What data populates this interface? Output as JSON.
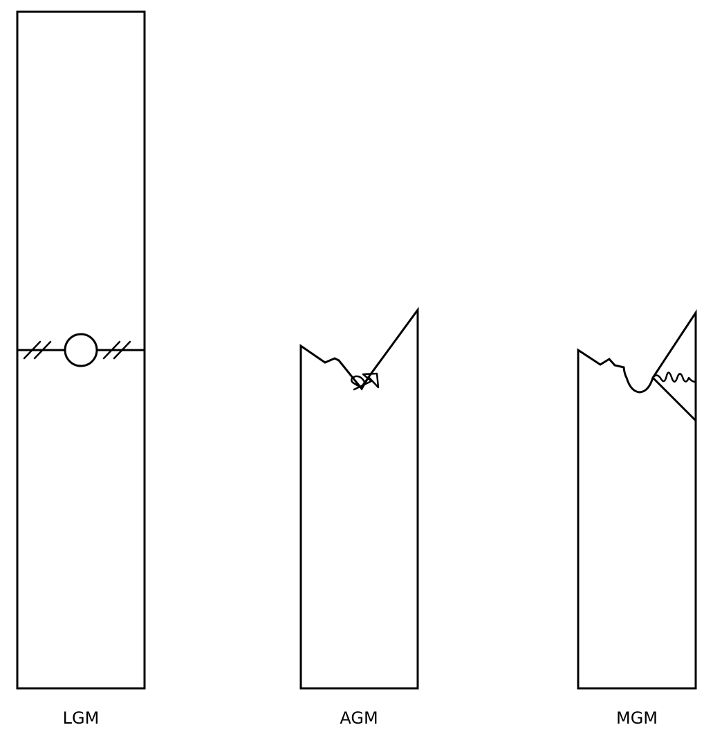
{
  "figures": [
    {
      "id": "lgm",
      "label": "LGM"
    },
    {
      "id": "agm",
      "label": "AGM"
    },
    {
      "id": "mgm",
      "label": "MGM"
    }
  ],
  "colors": {
    "stroke": "#000000",
    "background": "#ffffff"
  }
}
